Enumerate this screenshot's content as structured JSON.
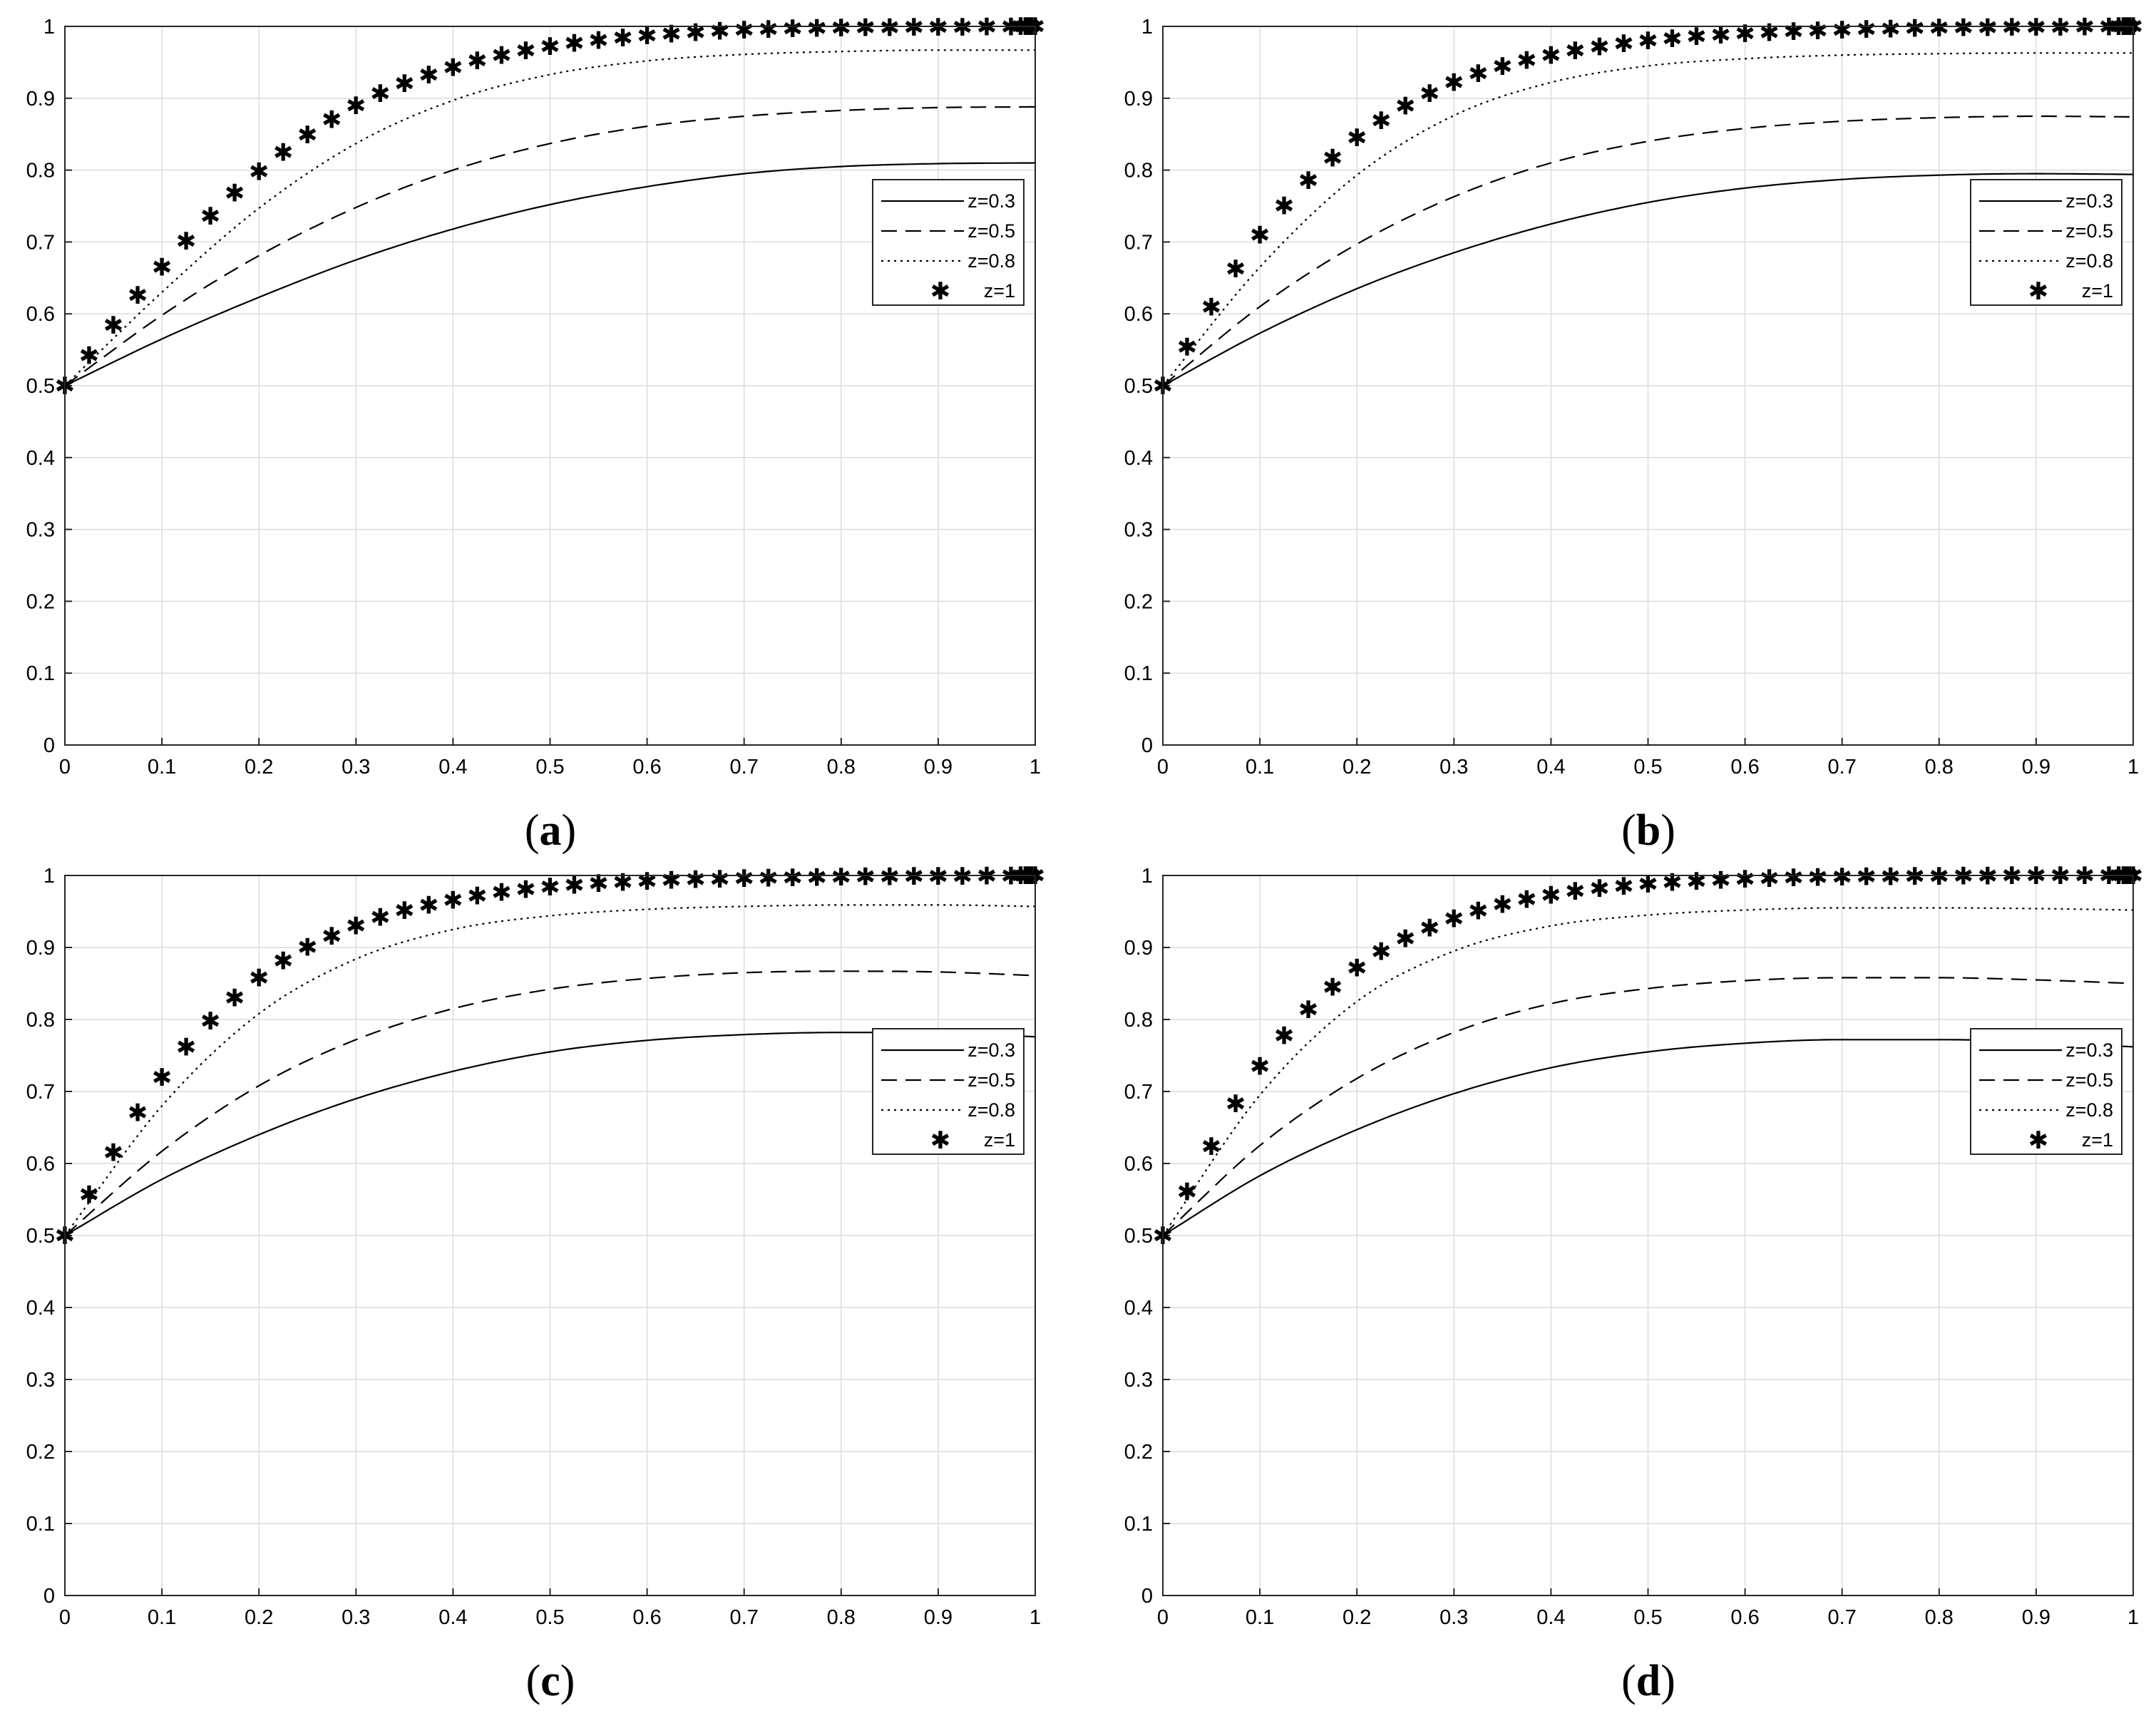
{
  "chart_data": [
    {
      "type": "line",
      "panel_label": "a",
      "xlim": [
        0,
        1
      ],
      "ylim": [
        0,
        1
      ],
      "grid": true,
      "legend_position": "right",
      "xticks": [
        "0",
        "0.1",
        "0.2",
        "0.3",
        "0.4",
        "0.5",
        "0.6",
        "0.7",
        "0.8",
        "0.9",
        "1"
      ],
      "yticks": [
        "0",
        "0.1",
        "0.2",
        "0.3",
        "0.4",
        "0.5",
        "0.6",
        "0.7",
        "0.8",
        "0.9",
        "1"
      ],
      "x": [
        0,
        0.1,
        0.2,
        0.3,
        0.4,
        0.5,
        0.6,
        0.7,
        0.8,
        0.9,
        1.0
      ],
      "series": [
        {
          "name": "z=0.3",
          "style": "solid",
          "values": [
            0.5,
            0.565,
            0.623,
            0.675,
            0.718,
            0.752,
            0.777,
            0.795,
            0.805,
            0.809,
            0.81
          ]
        },
        {
          "name": "z=0.5",
          "style": "dashed",
          "values": [
            0.5,
            0.598,
            0.681,
            0.748,
            0.8,
            0.837,
            0.861,
            0.875,
            0.883,
            0.887,
            0.888
          ]
        },
        {
          "name": "z=0.8",
          "style": "dotted",
          "values": [
            0.5,
            0.63,
            0.747,
            0.837,
            0.897,
            0.933,
            0.952,
            0.961,
            0.965,
            0.967,
            0.967
          ]
        },
        {
          "name": "z=1",
          "style": "marker",
          "values": [
            0.5,
            0.665,
            0.798,
            0.89,
            0.943,
            0.972,
            0.987,
            0.995,
            0.998,
            0.999,
            1.0
          ]
        }
      ]
    },
    {
      "type": "line",
      "panel_label": "b",
      "xlim": [
        0,
        1
      ],
      "ylim": [
        0,
        1
      ],
      "grid": true,
      "legend_position": "right",
      "xticks": [
        "0",
        "0.1",
        "0.2",
        "0.3",
        "0.4",
        "0.5",
        "0.6",
        "0.7",
        "0.8",
        "0.9",
        "1"
      ],
      "yticks": [
        "0",
        "0.1",
        "0.2",
        "0.3",
        "0.4",
        "0.5",
        "0.6",
        "0.7",
        "0.8",
        "0.9",
        "1"
      ],
      "x": [
        0,
        0.1,
        0.2,
        0.3,
        0.4,
        0.5,
        0.6,
        0.7,
        0.8,
        0.9,
        1.0
      ],
      "series": [
        {
          "name": "z=0.3",
          "style": "solid",
          "values": [
            0.5,
            0.573,
            0.635,
            0.685,
            0.725,
            0.755,
            0.775,
            0.787,
            0.793,
            0.795,
            0.794
          ]
        },
        {
          "name": "z=0.5",
          "style": "dashed",
          "values": [
            0.5,
            0.61,
            0.697,
            0.763,
            0.81,
            0.84,
            0.858,
            0.868,
            0.873,
            0.875,
            0.874
          ]
        },
        {
          "name": "z=0.8",
          "style": "dotted",
          "values": [
            0.5,
            0.665,
            0.793,
            0.876,
            0.922,
            0.945,
            0.955,
            0.96,
            0.962,
            0.963,
            0.963
          ]
        },
        {
          "name": "z=1",
          "style": "marker",
          "values": [
            0.5,
            0.71,
            0.845,
            0.922,
            0.96,
            0.98,
            0.99,
            0.995,
            0.998,
            0.999,
            1.0
          ]
        }
      ]
    },
    {
      "type": "line",
      "panel_label": "c",
      "xlim": [
        0,
        1
      ],
      "ylim": [
        0,
        1
      ],
      "grid": true,
      "legend_position": "right",
      "xticks": [
        "0",
        "0.1",
        "0.2",
        "0.3",
        "0.4",
        "0.5",
        "0.6",
        "0.7",
        "0.8",
        "0.9",
        "1"
      ],
      "yticks": [
        "0",
        "0.1",
        "0.2",
        "0.3",
        "0.4",
        "0.5",
        "0.6",
        "0.7",
        "0.8",
        "0.9",
        "1"
      ],
      "x": [
        0,
        0.1,
        0.2,
        0.3,
        0.4,
        0.5,
        0.6,
        0.7,
        0.8,
        0.9,
        1.0
      ],
      "series": [
        {
          "name": "z=0.3",
          "style": "solid",
          "values": [
            0.5,
            0.578,
            0.64,
            0.69,
            0.728,
            0.755,
            0.771,
            0.779,
            0.782,
            0.781,
            0.776
          ]
        },
        {
          "name": "z=0.5",
          "style": "dashed",
          "values": [
            0.5,
            0.617,
            0.708,
            0.772,
            0.815,
            0.842,
            0.857,
            0.865,
            0.867,
            0.866,
            0.861
          ]
        },
        {
          "name": "z=0.8",
          "style": "dotted",
          "values": [
            0.5,
            0.68,
            0.808,
            0.884,
            0.925,
            0.944,
            0.953,
            0.957,
            0.959,
            0.959,
            0.957
          ]
        },
        {
          "name": "z=1",
          "style": "marker",
          "values": [
            0.5,
            0.72,
            0.858,
            0.93,
            0.966,
            0.984,
            0.992,
            0.996,
            0.998,
            0.999,
            1.0
          ]
        }
      ]
    },
    {
      "type": "line",
      "panel_label": "d",
      "xlim": [
        0,
        1
      ],
      "ylim": [
        0,
        1
      ],
      "grid": true,
      "legend_position": "right",
      "xticks": [
        "0",
        "0.1",
        "0.2",
        "0.3",
        "0.4",
        "0.5",
        "0.6",
        "0.7",
        "0.8",
        "0.9",
        "1"
      ],
      "yticks": [
        "0",
        "0.1",
        "0.2",
        "0.3",
        "0.4",
        "0.5",
        "0.6",
        "0.7",
        "0.8",
        "0.9",
        "1"
      ],
      "x": [
        0,
        0.1,
        0.2,
        0.3,
        0.4,
        0.5,
        0.6,
        0.7,
        0.8,
        0.9,
        1.0
      ],
      "series": [
        {
          "name": "z=0.3",
          "style": "solid",
          "values": [
            0.5,
            0.583,
            0.647,
            0.697,
            0.733,
            0.755,
            0.767,
            0.772,
            0.772,
            0.769,
            0.762
          ]
        },
        {
          "name": "z=0.5",
          "style": "dashed",
          "values": [
            0.5,
            0.625,
            0.718,
            0.782,
            0.822,
            0.843,
            0.854,
            0.858,
            0.858,
            0.855,
            0.85
          ]
        },
        {
          "name": "z=0.8",
          "style": "dotted",
          "values": [
            0.5,
            0.695,
            0.825,
            0.895,
            0.93,
            0.945,
            0.952,
            0.955,
            0.955,
            0.954,
            0.952
          ]
        },
        {
          "name": "z=1",
          "style": "marker",
          "values": [
            0.5,
            0.735,
            0.872,
            0.94,
            0.973,
            0.988,
            0.995,
            0.998,
            0.999,
            1.0,
            1.0
          ]
        }
      ]
    }
  ]
}
